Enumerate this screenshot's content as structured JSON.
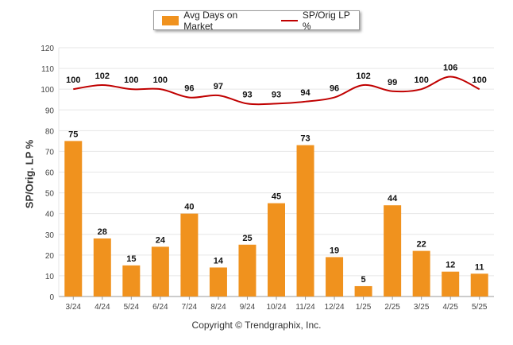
{
  "colors": {
    "bar": "#f0921e",
    "line": "#c00000",
    "grid": "#e6e6e6",
    "axis": "#999999"
  },
  "chart_data": {
    "type": "bar",
    "categories": [
      "3/24",
      "4/24",
      "5/24",
      "6/24",
      "7/24",
      "8/24",
      "9/24",
      "10/24",
      "11/24",
      "12/24",
      "1/25",
      "2/25",
      "3/25",
      "4/25",
      "5/25"
    ],
    "series": [
      {
        "name": "Avg Days on Market",
        "type": "bar",
        "values": [
          75,
          28,
          15,
          24,
          40,
          14,
          25,
          45,
          73,
          19,
          5,
          44,
          22,
          12,
          11
        ]
      },
      {
        "name": "SP/Orig LP %",
        "type": "line",
        "values": [
          100,
          102,
          100,
          100,
          96,
          97,
          93,
          93,
          94,
          96,
          102,
          99,
          100,
          106,
          100
        ]
      }
    ],
    "ylabel": "SP/Orig. LP %",
    "ylim": [
      0,
      120
    ],
    "yticks": [
      0,
      10,
      20,
      30,
      40,
      50,
      60,
      70,
      80,
      90,
      100,
      110,
      120
    ],
    "grid": true,
    "legend": "top-center"
  },
  "footer": {
    "copyright": "Copyright © Trendgraphix, Inc."
  }
}
